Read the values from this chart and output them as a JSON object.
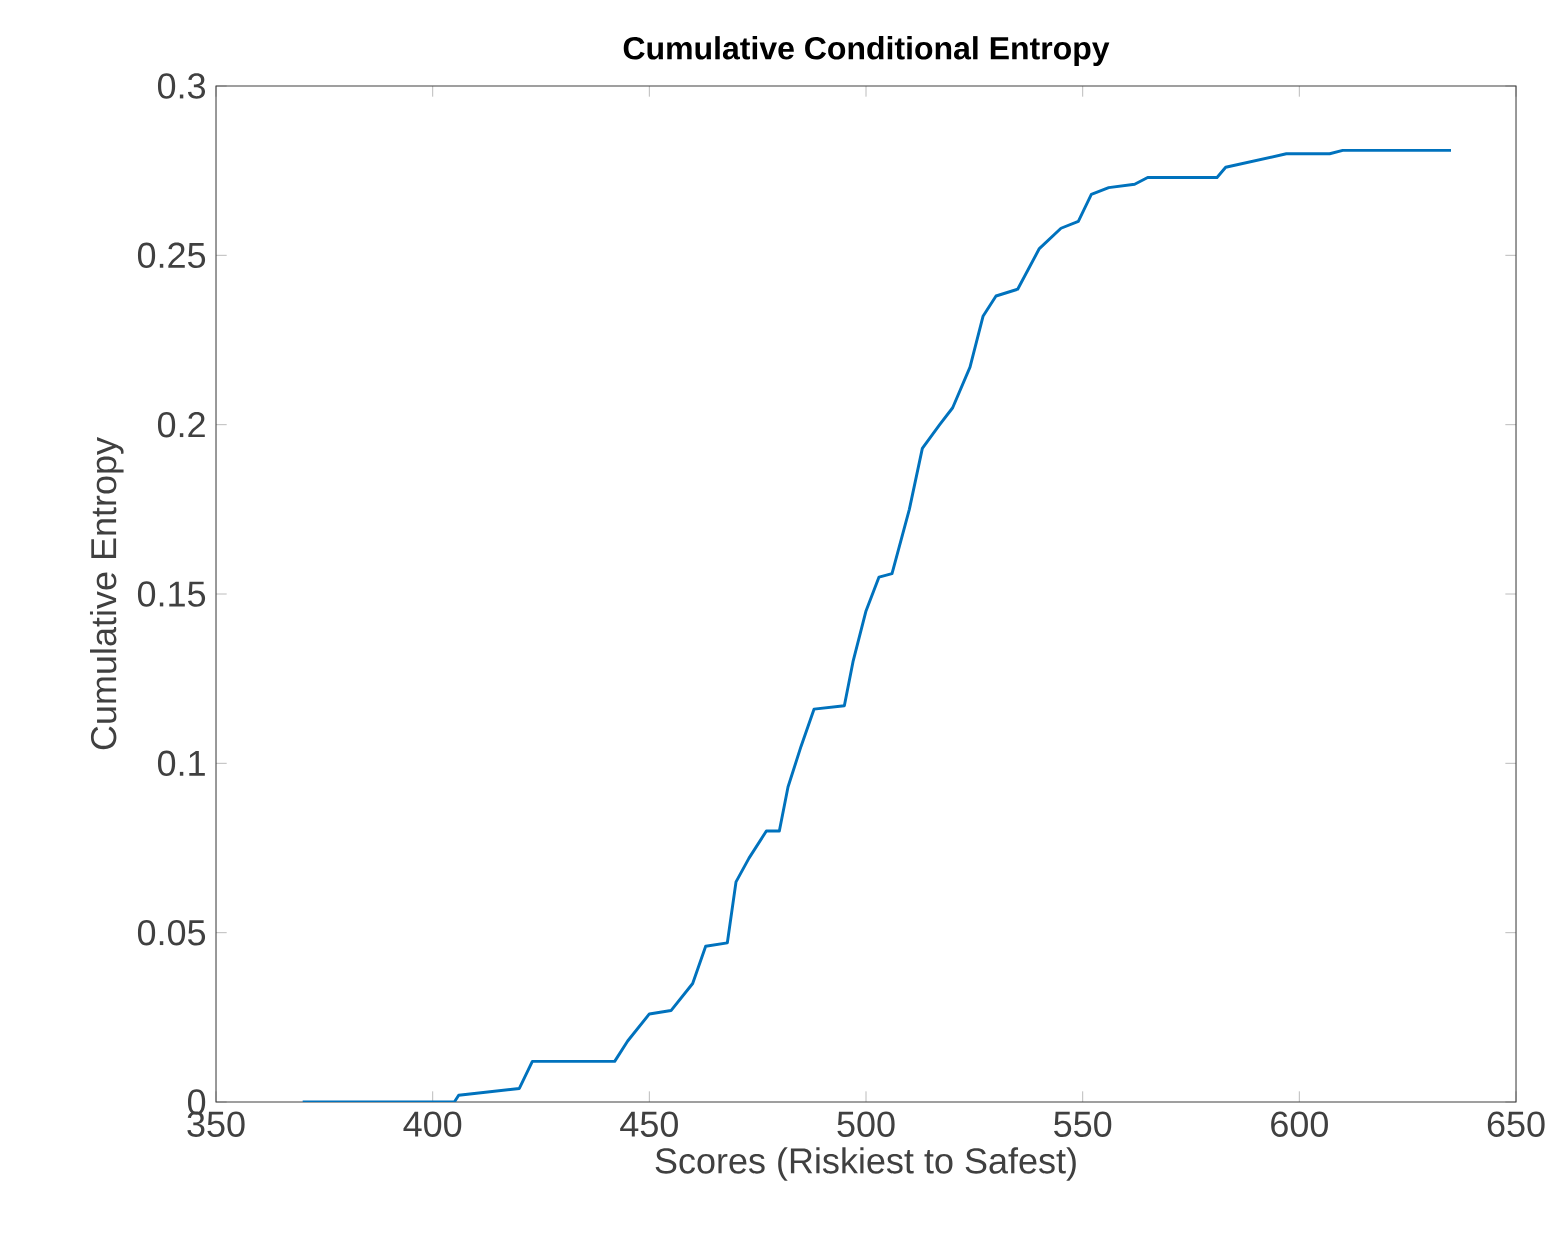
{
  "chart_data": {
    "type": "line",
    "title": "Cumulative Conditional Entropy",
    "xlabel": "Scores (Riskiest to Safest)",
    "ylabel": "Cumulative Entropy",
    "x": [
      370,
      405,
      406,
      420,
      423,
      442,
      445,
      450,
      455,
      460,
      463,
      468,
      470,
      473,
      477,
      480,
      482,
      485,
      488,
      495,
      497,
      500,
      503,
      506,
      510,
      513,
      517,
      520,
      524,
      527,
      530,
      535,
      540,
      545,
      549,
      552,
      556,
      562,
      565,
      581,
      583,
      590,
      597,
      607,
      610,
      635
    ],
    "values": [
      0,
      0,
      0.002,
      0.004,
      0.012,
      0.012,
      0.018,
      0.026,
      0.027,
      0.035,
      0.046,
      0.047,
      0.065,
      0.072,
      0.08,
      0.08,
      0.093,
      0.105,
      0.116,
      0.117,
      0.13,
      0.145,
      0.155,
      0.156,
      0.175,
      0.193,
      0.2,
      0.205,
      0.217,
      0.232,
      0.238,
      0.24,
      0.252,
      0.258,
      0.26,
      0.268,
      0.27,
      0.271,
      0.273,
      0.273,
      0.276,
      0.278,
      0.28,
      0.28,
      0.281,
      0.281
    ],
    "color": "#0072bd",
    "xlim": [
      350,
      650
    ],
    "ylim": [
      0,
      0.3
    ],
    "xticks": [
      350,
      400,
      450,
      500,
      550,
      600,
      650
    ],
    "yticks": [
      0,
      0.05,
      0.1,
      0.15,
      0.2,
      0.25,
      0.3
    ],
    "grid": false
  }
}
